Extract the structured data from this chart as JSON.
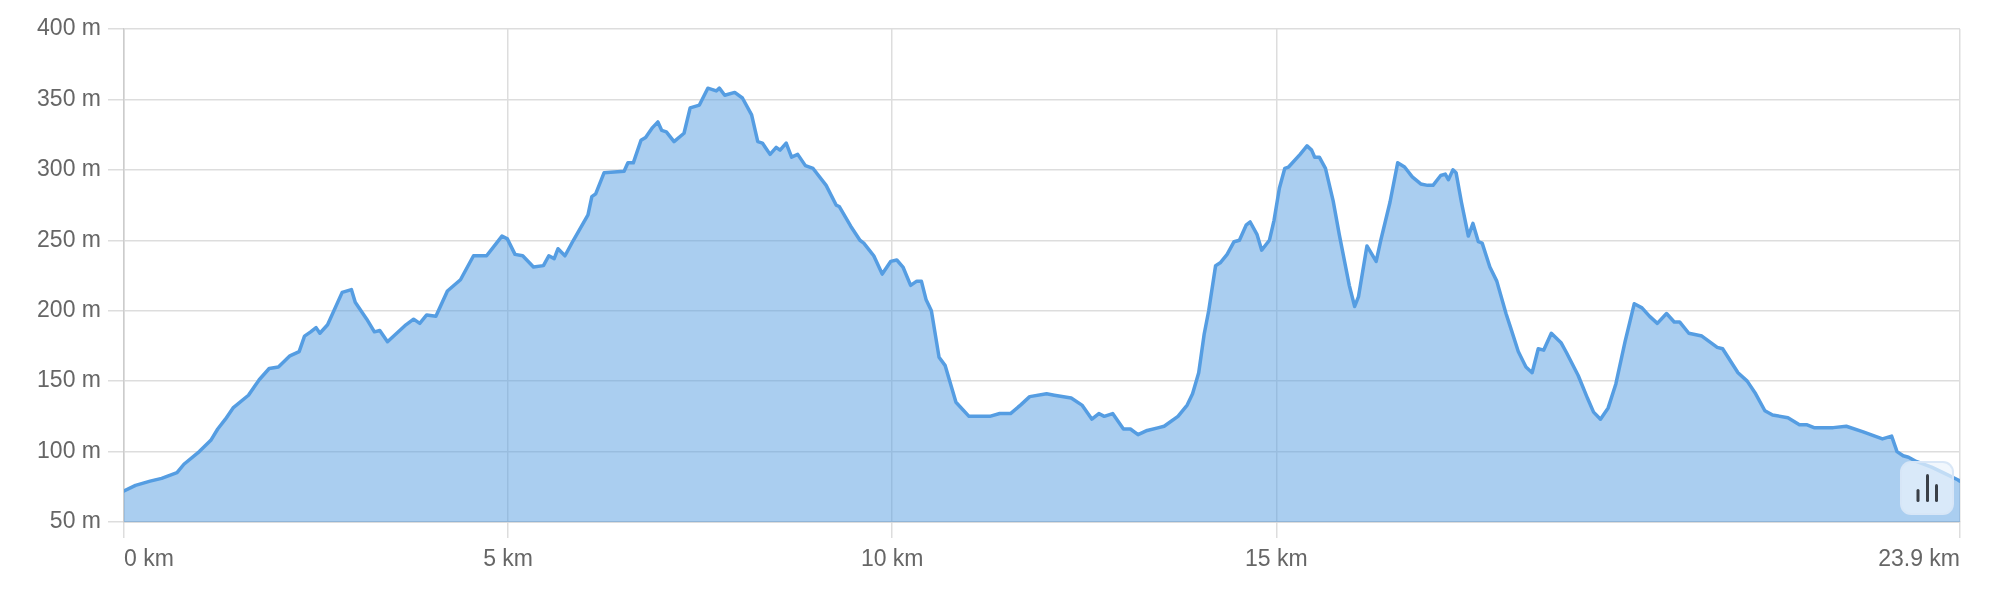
{
  "chart_data": {
    "type": "area",
    "color": "#559de2",
    "marker": "none",
    "line_style": "solid",
    "grid": true,
    "xlim": [
      0,
      23.9
    ],
    "ylim": [
      50,
      400
    ],
    "xticks": [
      {
        "value": 0,
        "label": "0 km"
      },
      {
        "value": 5,
        "label": "5 km"
      },
      {
        "value": 10,
        "label": "10 km"
      },
      {
        "value": 15,
        "label": "15 km"
      },
      {
        "value": 23.9,
        "label": "23.9 km"
      }
    ],
    "yticks": [
      {
        "value": 50,
        "label": "50 m"
      },
      {
        "value": 100,
        "label": "100 m"
      },
      {
        "value": 150,
        "label": "150 m"
      },
      {
        "value": 200,
        "label": "200 m"
      },
      {
        "value": 250,
        "label": "250 m"
      },
      {
        "value": 300,
        "label": "300 m"
      },
      {
        "value": 350,
        "label": "350 m"
      },
      {
        "value": 400,
        "label": "400 m"
      }
    ],
    "x": [
      0,
      0.15,
      0.34,
      0.49,
      0.69,
      0.78,
      0.98,
      1.13,
      1.22,
      1.32,
      1.42,
      1.62,
      1.76,
      1.89,
      2.01,
      2.16,
      2.28,
      2.35,
      2.43,
      2.5,
      2.55,
      2.65,
      2.84,
      2.96,
      3.01,
      3.16,
      3.26,
      3.33,
      3.43,
      3.55,
      3.67,
      3.77,
      3.85,
      3.94,
      4.06,
      4.21,
      4.38,
      4.55,
      4.72,
      4.92,
      4.99,
      5.09,
      5.19,
      5.33,
      5.46,
      5.53,
      5.6,
      5.65,
      5.74,
      5.85,
      6.04,
      6.09,
      6.14,
      6.25,
      6.51,
      6.56,
      6.63,
      6.73,
      6.79,
      6.88,
      6.95,
      7.0,
      7.06,
      7.16,
      7.29,
      7.37,
      7.49,
      7.6,
      7.66,
      7.71,
      7.75,
      7.82,
      7.95,
      8.05,
      8.17,
      8.25,
      8.31,
      8.41,
      8.49,
      8.54,
      8.62,
      8.69,
      8.77,
      8.87,
      8.97,
      9.14,
      9.27,
      9.31,
      9.46,
      9.58,
      9.63,
      9.76,
      9.87,
      9.98,
      10.06,
      10.14,
      10.24,
      10.32,
      10.38,
      10.44,
      10.51,
      10.61,
      10.69,
      10.83,
      11.0,
      11.13,
      11.27,
      11.4,
      11.54,
      11.67,
      11.79,
      12.01,
      12.11,
      12.33,
      12.47,
      12.6,
      12.69,
      12.76,
      12.87,
      13.01,
      13.1,
      13.2,
      13.32,
      13.47,
      13.54,
      13.72,
      13.84,
      13.91,
      13.99,
      14.06,
      14.12,
      14.21,
      14.27,
      14.36,
      14.45,
      14.52,
      14.61,
      14.66,
      14.75,
      14.81,
      14.91,
      14.97,
      15.04,
      15.11,
      15.16,
      15.31,
      15.4,
      15.46,
      15.5,
      15.56,
      15.64,
      15.74,
      15.82,
      15.95,
      16.02,
      16.07,
      16.18,
      16.3,
      16.36,
      16.48,
      16.58,
      16.67,
      16.77,
      16.88,
      16.97,
      17.04,
      17.14,
      17.2,
      17.24,
      17.3,
      17.34,
      17.41,
      17.5,
      17.56,
      17.63,
      17.68,
      17.78,
      17.87,
      17.99,
      18.05,
      18.15,
      18.25,
      18.33,
      18.41,
      18.48,
      18.58,
      18.71,
      18.78,
      18.93,
      19.05,
      19.13,
      19.22,
      19.32,
      19.42,
      19.54,
      19.66,
      19.76,
      19.86,
      19.96,
      20.08,
      20.18,
      20.25,
      20.37,
      20.54,
      20.74,
      20.81,
      21.01,
      21.13,
      21.24,
      21.36,
      21.46,
      21.66,
      21.81,
      21.91,
      22.0,
      22.25,
      22.42,
      22.64,
      22.89,
      23.01,
      23.08,
      23.16,
      23.23,
      23.33,
      23.53,
      23.72,
      23.87,
      23.9
    ],
    "values": [
      72,
      76,
      79,
      81,
      85,
      91,
      100,
      108,
      116,
      123,
      131,
      140,
      151,
      159,
      160,
      168,
      171,
      182,
      185,
      188,
      184,
      190,
      213,
      215,
      206,
      194,
      185,
      186,
      178,
      184,
      190,
      194,
      191,
      197,
      196,
      214,
      222,
      239,
      239,
      253,
      251,
      240,
      239,
      231,
      232,
      239,
      237,
      244,
      239,
      250,
      268,
      281,
      283,
      298,
      299,
      305,
      305,
      321,
      323,
      330,
      334,
      328,
      327,
      320,
      326,
      344,
      346,
      358,
      357,
      356,
      358,
      353,
      355,
      351,
      339,
      320,
      319,
      311,
      316,
      314,
      319,
      309,
      311,
      303,
      301,
      289,
      275,
      274,
      260,
      250,
      248,
      239,
      226,
      235,
      236,
      231,
      218,
      221,
      221,
      208,
      200,
      167,
      161,
      135,
      125,
      125,
      125,
      127,
      127,
      133,
      139,
      141,
      140,
      138,
      133,
      123,
      127,
      125,
      127,
      116,
      116,
      112,
      115,
      117,
      118,
      125,
      133,
      141,
      156,
      183,
      200,
      232,
      234,
      240,
      249,
      250,
      261,
      263,
      254,
      243,
      250,
      264,
      287,
      301,
      302,
      311,
      317,
      314,
      309,
      309,
      301,
      278,
      254,
      218,
      203,
      210,
      246,
      235,
      250,
      277,
      305,
      302,
      295,
      290,
      289,
      289,
      296,
      297,
      293,
      300,
      298,
      277,
      253,
      262,
      249,
      248,
      231,
      221,
      198,
      188,
      171,
      160,
      156,
      173,
      172,
      184,
      177,
      170,
      154,
      138,
      128,
      123,
      131,
      148,
      178,
      205,
      202,
      196,
      191,
      198,
      192,
      192,
      184,
      182,
      174,
      173,
      156,
      150,
      141,
      129,
      126,
      124,
      119,
      119,
      117,
      117,
      118,
      114,
      109,
      111,
      100,
      97,
      96,
      93,
      89,
      84,
      80,
      79
    ]
  }
}
